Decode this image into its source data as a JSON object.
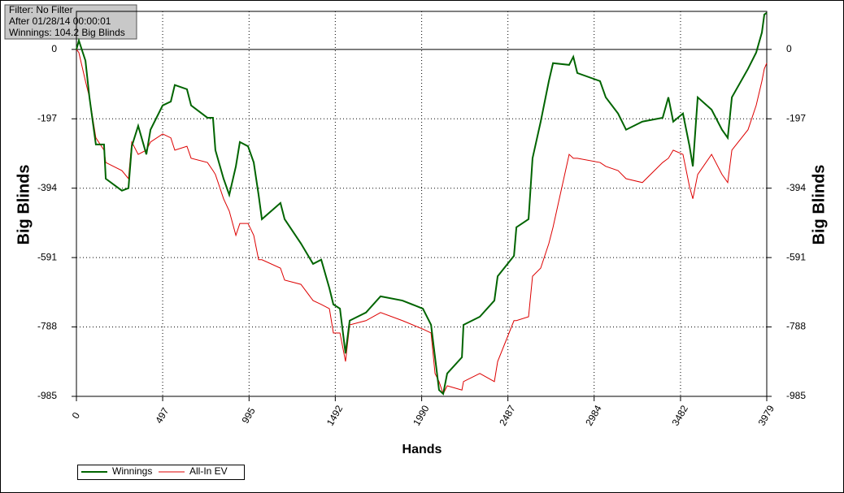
{
  "info_box": {
    "filter": "Filter: No Filter",
    "after": "After 01/28/14 00:00:01",
    "winnings": "Winnings: 104.2 Big Blinds"
  },
  "chart_data": {
    "type": "line",
    "xlabel": "Hands",
    "ylabel": "Big Blinds",
    "y2label": "Big Blinds",
    "xlim": [
      0,
      3979
    ],
    "ylim": [
      -985,
      108
    ],
    "xticks": [
      0,
      497,
      995,
      1492,
      1990,
      2487,
      2984,
      3482,
      3979
    ],
    "yticks": [
      0,
      -197,
      -394,
      -591,
      -788,
      -985
    ],
    "grid": true,
    "legend": "bottom-left",
    "x": [
      0,
      14,
      52,
      75,
      112,
      159,
      169,
      262,
      300,
      319,
      356,
      403,
      427,
      497,
      544,
      567,
      637,
      661,
      755,
      787,
      801,
      848,
      881,
      919,
      942,
      989,
      1022,
      1050,
      1069,
      1176,
      1200,
      1294,
      1364,
      1411,
      1458,
      1481,
      1519,
      1551,
      1575,
      1669,
      1753,
      1879,
      1997,
      2044,
      2067,
      2090,
      2114,
      2137,
      2222,
      2231,
      2325,
      2409,
      2428,
      2522,
      2536,
      2606,
      2629,
      2676,
      2723,
      2747,
      2840,
      2864,
      2887,
      3018,
      3051,
      3122,
      3168,
      3262,
      3379,
      3412,
      3440,
      3496,
      3534,
      3553,
      3581,
      3661,
      3721,
      3754,
      3778,
      3871,
      3918,
      3951,
      3965,
      3979
    ],
    "series": [
      {
        "name": "Winnings",
        "color": "#006400",
        "width": 2,
        "values": [
          0,
          25,
          -32,
          -136,
          -270,
          -270,
          -367,
          -401,
          -394,
          -275,
          -217,
          -298,
          -228,
          -159,
          -148,
          -101,
          -113,
          -159,
          -194,
          -194,
          -286,
          -367,
          -413,
          -332,
          -263,
          -275,
          -321,
          -413,
          -482,
          -436,
          -482,
          -551,
          -609,
          -597,
          -678,
          -724,
          -736,
          -863,
          -770,
          -747,
          -701,
          -713,
          -736,
          -782,
          -874,
          -967,
          -978,
          -920,
          -874,
          -782,
          -759,
          -713,
          -644,
          -586,
          -505,
          -482,
          -309,
          -205,
          -90,
          -39,
          -44,
          -21,
          -67,
          -90,
          -136,
          -182,
          -228,
          -205,
          -194,
          -136,
          -205,
          -182,
          -275,
          -332,
          -136,
          -171,
          -228,
          -251,
          -136,
          -55,
          -9,
          48,
          99,
          104.2
        ]
      },
      {
        "name": "All-In EV",
        "color": "#dd0000",
        "width": 1,
        "values": [
          0,
          -9,
          -90,
          -136,
          -251,
          -286,
          -321,
          -344,
          -367,
          -263,
          -298,
          -286,
          -263,
          -240,
          -251,
          -286,
          -275,
          -309,
          -321,
          -344,
          -355,
          -424,
          -459,
          -528,
          -494,
          -494,
          -528,
          -597,
          -597,
          -621,
          -655,
          -667,
          -713,
          -724,
          -736,
          -805,
          -805,
          -886,
          -782,
          -770,
          -747,
          -770,
          -794,
          -805,
          -920,
          -943,
          -978,
          -955,
          -967,
          -943,
          -920,
          -943,
          -886,
          -770,
          -770,
          -759,
          -644,
          -621,
          -551,
          -505,
          -298,
          -309,
          -309,
          -321,
          -332,
          -344,
          -367,
          -378,
          -321,
          -309,
          -286,
          -298,
          -390,
          -424,
          -355,
          -298,
          -355,
          -378,
          -286,
          -228,
          -159,
          -90,
          -55,
          -39
        ]
      }
    ]
  }
}
